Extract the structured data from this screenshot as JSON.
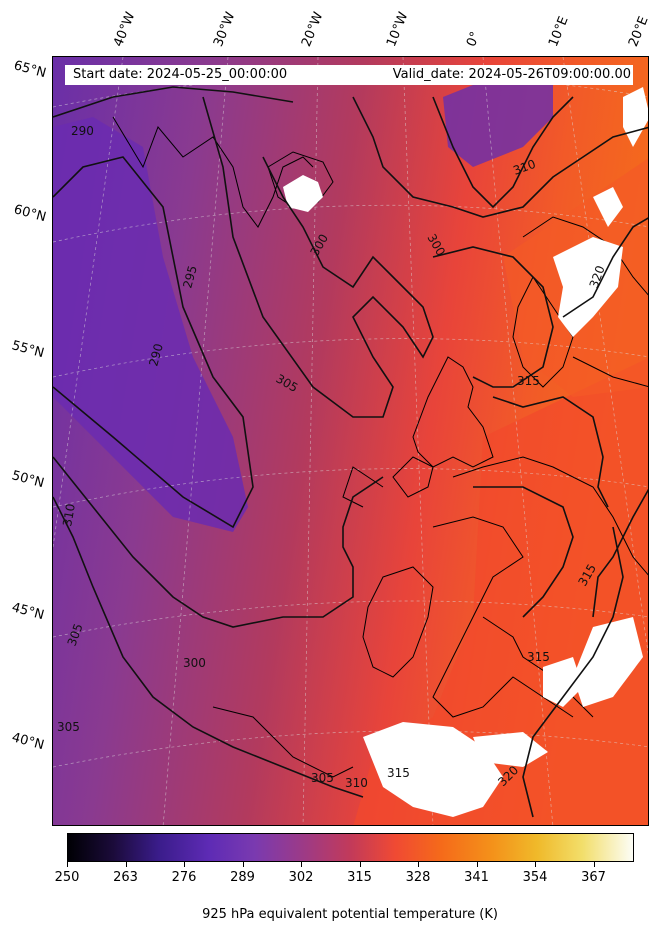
{
  "header": {
    "start_date": "Start date: 2024-05-25_00:00:00",
    "valid_date": "Valid_date: 2024-05-26T09:00:00.00"
  },
  "lat_labels": [
    "65°N",
    "60°N",
    "55°N",
    "50°N",
    "45°N",
    "40°N"
  ],
  "lon_labels": [
    "40°W",
    "30°W",
    "20°W",
    "10°W",
    "0°",
    "10°E",
    "20°E"
  ],
  "contour_labels": [
    "290",
    "295",
    "300",
    "305",
    "310",
    "315",
    "320"
  ],
  "colorbar": {
    "ticks": [
      "250",
      "263",
      "276",
      "289",
      "302",
      "315",
      "328",
      "341",
      "354",
      "367"
    ],
    "title": "925 hPa equivalent potential temperature (K)",
    "colormap": [
      "#000004",
      "#3a1c8a",
      "#7a3ab0",
      "#c23a5a",
      "#f04a33",
      "#f4911a",
      "#f2de6a",
      "#fcfdf6"
    ]
  }
}
